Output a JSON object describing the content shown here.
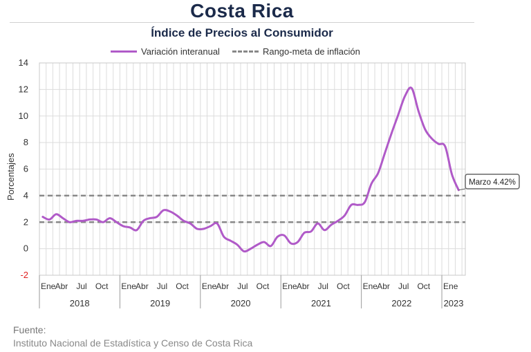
{
  "header": {
    "title": "Costa Rica",
    "subtitle": "Índice de Precios al Consumidor"
  },
  "legend": {
    "series_label": "Variación interanual",
    "target_label": "Rango-meta de inflación"
  },
  "annotation": {
    "text": "Marzo 4.42%"
  },
  "source": {
    "label": "Fuente:",
    "text": "Instituto Nacional de Estadística y Censo de Costa Rica"
  },
  "colors": {
    "series": "#b05ac8",
    "target": "#888888",
    "negative_tick": "#e02020"
  },
  "chart_data": {
    "type": "line",
    "title": "Índice de Precios al Consumidor",
    "ylabel": "Porcentajes",
    "ylim": [
      -2,
      14
    ],
    "yticks": [
      -2,
      0,
      2,
      4,
      6,
      8,
      10,
      12,
      14
    ],
    "grid": true,
    "legend_position": "top",
    "month_tick_labels": [
      "Ene",
      "Abr",
      "Jul",
      "Oct"
    ],
    "years": [
      "2018",
      "2019",
      "2020",
      "2021",
      "2022",
      "2023"
    ],
    "x": [
      "2018-01",
      "2018-02",
      "2018-03",
      "2018-04",
      "2018-05",
      "2018-06",
      "2018-07",
      "2018-08",
      "2018-09",
      "2018-10",
      "2018-11",
      "2018-12",
      "2019-01",
      "2019-02",
      "2019-03",
      "2019-04",
      "2019-05",
      "2019-06",
      "2019-07",
      "2019-08",
      "2019-09",
      "2019-10",
      "2019-11",
      "2019-12",
      "2020-01",
      "2020-02",
      "2020-03",
      "2020-04",
      "2020-05",
      "2020-06",
      "2020-07",
      "2020-08",
      "2020-09",
      "2020-10",
      "2020-11",
      "2020-12",
      "2021-01",
      "2021-02",
      "2021-03",
      "2021-04",
      "2021-05",
      "2021-06",
      "2021-07",
      "2021-08",
      "2021-09",
      "2021-10",
      "2021-11",
      "2021-12",
      "2022-01",
      "2022-02",
      "2022-03",
      "2022-04",
      "2022-05",
      "2022-06",
      "2022-07",
      "2022-08",
      "2022-09",
      "2022-10",
      "2022-11",
      "2022-12",
      "2023-01",
      "2023-02",
      "2023-03"
    ],
    "series": [
      {
        "name": "Variación interanual",
        "values": [
          2.4,
          2.2,
          2.6,
          2.3,
          2.0,
          2.1,
          2.1,
          2.2,
          2.2,
          2.0,
          2.3,
          2.0,
          1.7,
          1.6,
          1.4,
          2.1,
          2.3,
          2.4,
          2.9,
          2.8,
          2.5,
          2.1,
          1.9,
          1.5,
          1.5,
          1.7,
          1.9,
          0.9,
          0.6,
          0.3,
          -0.2,
          0.0,
          0.3,
          0.5,
          0.2,
          0.9,
          1.0,
          0.4,
          0.5,
          1.2,
          1.3,
          1.9,
          1.4,
          1.8,
          2.1,
          2.5,
          3.3,
          3.3,
          3.5,
          4.9,
          5.7,
          7.2,
          8.7,
          10.1,
          11.5,
          12.1,
          10.4,
          9.0,
          8.3,
          7.9,
          7.7,
          5.6,
          4.42
        ]
      }
    ],
    "target_range": [
      2,
      4
    ]
  }
}
